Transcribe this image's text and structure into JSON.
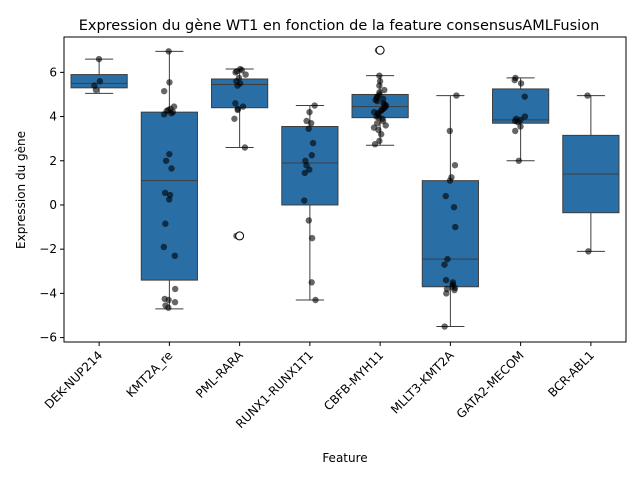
{
  "chart_data": {
    "type": "box",
    "title": "Expression du gène WT1 en fonction de la feature consensusAMLFusion",
    "xlabel": "Feature",
    "ylabel": "Expression du gène",
    "ylim": [
      -6.2,
      7.6
    ],
    "yticks": [
      -6,
      -4,
      -2,
      0,
      2,
      4,
      6
    ],
    "grid": false,
    "box_color": "#2a6ea6",
    "point_color": "#000000",
    "categories": [
      "DEK-NUP214",
      "KMT2A_re",
      "PML-RARA",
      "RUNX1-RUNX1T1",
      "CBFB-MYH11",
      "MLLT3-KMT2A",
      "GATA2-MECOM",
      "BCR-ABL1"
    ],
    "boxes": [
      {
        "q1": 5.3,
        "median": 5.5,
        "q3": 5.9,
        "whisker_low": 5.05,
        "whisker_high": 6.6,
        "outliers": []
      },
      {
        "q1": -3.4,
        "median": 1.1,
        "q3": 4.2,
        "whisker_low": -4.7,
        "whisker_high": 6.95,
        "outliers": []
      },
      {
        "q1": 4.4,
        "median": 5.45,
        "q3": 5.7,
        "whisker_low": 2.6,
        "whisker_high": 6.15,
        "outliers": [
          -1.4
        ]
      },
      {
        "q1": 0.0,
        "median": 1.9,
        "q3": 3.55,
        "whisker_low": -4.3,
        "whisker_high": 4.5,
        "outliers": []
      },
      {
        "q1": 3.95,
        "median": 4.45,
        "q3": 5.0,
        "whisker_low": 2.7,
        "whisker_high": 5.85,
        "outliers": [
          7.0
        ]
      },
      {
        "q1": -3.7,
        "median": -2.45,
        "q3": 1.1,
        "whisker_low": -5.5,
        "whisker_high": 4.95,
        "outliers": []
      },
      {
        "q1": 3.7,
        "median": 3.85,
        "q3": 5.25,
        "whisker_low": 2.0,
        "whisker_high": 5.75,
        "outliers": []
      },
      {
        "q1": -0.35,
        "median": 1.4,
        "q3": 3.15,
        "whisker_low": -2.1,
        "whisker_high": 4.95,
        "outliers": []
      }
    ],
    "points": [
      [
        6.6,
        5.6,
        5.4,
        5.2
      ],
      [
        6.95,
        5.55,
        5.15,
        4.45,
        4.35,
        4.3,
        4.25,
        4.2,
        4.15,
        4.1,
        2.3,
        2.0,
        1.65,
        0.55,
        0.45,
        0.25,
        -0.85,
        -1.9,
        -2.3,
        -3.8,
        -4.25,
        -4.3,
        -4.4,
        -4.55,
        -4.65
      ],
      [
        6.15,
        6.1,
        6.05,
        6.0,
        5.9,
        5.75,
        5.6,
        5.5,
        5.4,
        4.6,
        4.45,
        4.35,
        4.3,
        3.9,
        2.6,
        -1.4
      ],
      [
        4.5,
        4.2,
        3.8,
        3.7,
        3.45,
        2.8,
        2.25,
        2.0,
        1.8,
        1.6,
        1.45,
        0.2,
        -0.7,
        -1.5,
        -3.5,
        -4.3
      ],
      [
        7.0,
        5.85,
        5.6,
        5.4,
        5.2,
        5.1,
        5.0,
        4.9,
        4.85,
        4.8,
        4.75,
        4.7,
        4.6,
        4.55,
        4.5,
        4.45,
        4.4,
        4.35,
        4.3,
        4.25,
        4.2,
        4.15,
        4.1,
        4.0,
        3.95,
        3.9,
        3.8,
        3.7,
        3.6,
        3.5,
        3.4,
        3.2,
        2.9,
        2.75
      ],
      [
        4.95,
        3.35,
        1.8,
        1.25,
        1.1,
        0.4,
        -0.1,
        -1.0,
        -2.45,
        -2.7,
        -3.4,
        -3.5,
        -3.6,
        -3.7,
        -3.75,
        -3.8,
        -3.85,
        -4.0,
        -5.5
      ],
      [
        5.75,
        5.65,
        5.5,
        4.9,
        4.0,
        3.9,
        3.85,
        3.8,
        3.75,
        3.55,
        3.35,
        2.0
      ],
      [
        4.95,
        -2.1
      ]
    ]
  }
}
